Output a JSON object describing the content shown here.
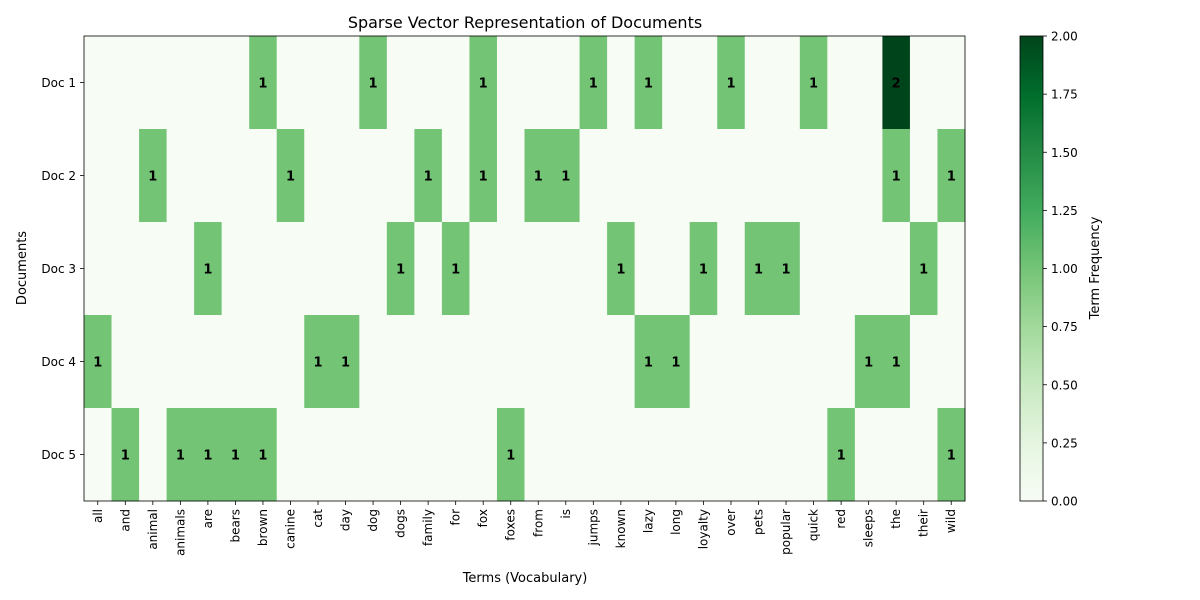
{
  "chart_data": {
    "type": "heatmap",
    "title": "Sparse Vector Representation of Documents",
    "xlabel": "Terms (Vocabulary)",
    "ylabel": "Documents",
    "colorbar_label": "Term Frequency",
    "colormap": "Greens",
    "vmin": 0,
    "vmax": 2,
    "colorbar_ticks": [
      "0.00",
      "0.25",
      "0.50",
      "0.75",
      "1.00",
      "1.25",
      "1.50",
      "1.75",
      "2.00"
    ],
    "rows": [
      "Doc 1",
      "Doc 2",
      "Doc 3",
      "Doc 4",
      "Doc 5"
    ],
    "columns": [
      "all",
      "and",
      "animal",
      "animals",
      "are",
      "bears",
      "brown",
      "canine",
      "cat",
      "day",
      "dog",
      "dogs",
      "family",
      "for",
      "fox",
      "foxes",
      "from",
      "is",
      "jumps",
      "known",
      "lazy",
      "long",
      "loyalty",
      "over",
      "pets",
      "popular",
      "quick",
      "red",
      "sleeps",
      "the",
      "their",
      "wild"
    ],
    "values": [
      [
        0,
        0,
        0,
        0,
        0,
        0,
        1,
        0,
        0,
        0,
        1,
        0,
        0,
        0,
        1,
        0,
        0,
        0,
        1,
        0,
        1,
        0,
        0,
        1,
        0,
        0,
        1,
        0,
        0,
        2,
        0,
        0
      ],
      [
        0,
        0,
        1,
        0,
        0,
        0,
        0,
        1,
        0,
        0,
        0,
        0,
        1,
        0,
        1,
        0,
        1,
        1,
        0,
        0,
        0,
        0,
        0,
        0,
        0,
        0,
        0,
        0,
        0,
        1,
        0,
        1
      ],
      [
        0,
        0,
        0,
        0,
        1,
        0,
        0,
        0,
        0,
        0,
        0,
        1,
        0,
        1,
        0,
        0,
        0,
        0,
        0,
        1,
        0,
        0,
        1,
        0,
        1,
        1,
        0,
        0,
        0,
        0,
        1,
        0
      ],
      [
        1,
        0,
        0,
        0,
        0,
        0,
        0,
        0,
        1,
        1,
        0,
        0,
        0,
        0,
        0,
        0,
        0,
        0,
        0,
        0,
        1,
        1,
        0,
        0,
        0,
        0,
        0,
        0,
        1,
        1,
        0,
        0
      ],
      [
        0,
        1,
        0,
        1,
        1,
        1,
        1,
        0,
        0,
        0,
        0,
        0,
        0,
        0,
        0,
        1,
        0,
        0,
        0,
        0,
        0,
        0,
        0,
        0,
        0,
        0,
        0,
        1,
        0,
        0,
        0,
        1
      ]
    ]
  }
}
